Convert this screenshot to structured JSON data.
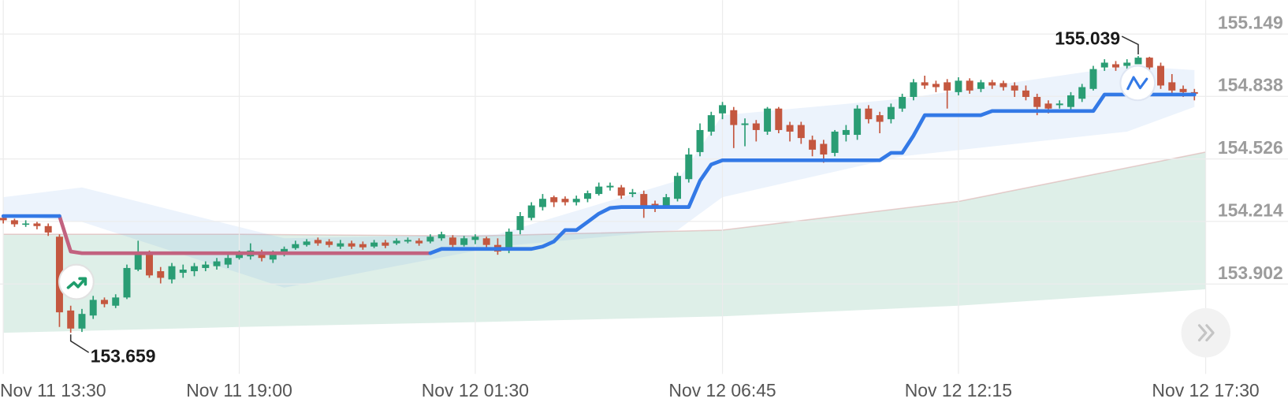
{
  "chart_data": {
    "type": "candlestick",
    "categories": [
      "Nov 11 13:30",
      null,
      null,
      null,
      null,
      null,
      null,
      null,
      null,
      null,
      null,
      null,
      null,
      null,
      null,
      null,
      null,
      null,
      null,
      null,
      null,
      "Nov 11 19:00",
      null,
      null,
      null,
      null,
      null,
      null,
      null,
      null,
      null,
      null,
      null,
      null,
      null,
      null,
      null,
      null,
      null,
      null,
      null,
      null,
      "Nov 12 01:30",
      null,
      null,
      null,
      null,
      null,
      null,
      null,
      null,
      null,
      null,
      null,
      null,
      null,
      null,
      null,
      null,
      null,
      null,
      null,
      null,
      null,
      "Nov 12 06:45",
      null,
      null,
      null,
      null,
      null,
      null,
      null,
      null,
      null,
      null,
      null,
      null,
      null,
      null,
      null,
      null,
      null,
      null,
      null,
      null,
      "Nov 12 12:15",
      null,
      null,
      null,
      null,
      null,
      null,
      null,
      null,
      null,
      null,
      null,
      null,
      null,
      null,
      null,
      null,
      null,
      null,
      null,
      null,
      null,
      "Nov 12 17:30"
    ],
    "open": [
      154.232,
      154.22,
      154.2,
      154.204,
      154.191,
      154.138,
      153.77,
      153.68,
      153.745,
      153.823,
      153.794,
      153.835,
      153.974,
      154.056,
      153.966,
      153.925,
      153.958,
      153.966,
      153.982,
      153.991,
      153.999,
      154.032,
      154.04,
      154.056,
      154.024,
      154.048,
      154.081,
      154.097,
      154.122,
      154.114,
      154.089,
      154.105,
      154.101,
      154.089,
      154.109,
      154.105,
      154.114,
      154.118,
      154.114,
      154.13,
      154.134,
      154.097,
      154.122,
      154.13,
      154.097,
      154.069,
      154.171,
      154.232,
      154.286,
      154.335,
      154.327,
      154.31,
      154.327,
      154.351,
      154.384,
      154.384,
      154.351,
      154.351,
      154.302,
      154.294,
      154.327,
      154.425,
      154.56,
      154.662,
      154.753,
      154.769,
      154.695,
      154.703,
      154.662,
      154.777,
      154.695,
      154.695,
      154.621,
      154.601,
      154.556,
      154.646,
      154.646,
      154.777,
      154.744,
      154.724,
      154.777,
      154.835,
      154.908,
      154.9,
      154.908,
      154.859,
      154.916,
      154.875,
      154.908,
      154.904,
      154.892,
      154.867,
      154.835,
      154.802,
      154.794,
      154.785,
      154.826,
      154.875,
      154.982,
      154.998,
      154.99,
      154.998,
      155.031,
      154.99,
      154.908,
      154.875,
      154.859,
      null
    ],
    "high": [
      154.245,
      154.228,
      154.22,
      154.212,
      154.204,
      154.15,
      153.794,
      153.778,
      153.843,
      153.835,
      153.851,
      153.999,
      154.118,
      154.069,
      153.987,
      154.007,
      153.999,
      154.007,
      154.015,
      154.032,
      154.048,
      154.069,
      154.105,
      154.073,
      154.069,
      154.089,
      154.118,
      154.126,
      154.134,
      154.126,
      154.122,
      154.118,
      154.114,
      154.122,
      154.122,
      154.13,
      154.134,
      154.13,
      154.15,
      154.163,
      154.146,
      154.142,
      154.15,
      154.138,
      154.13,
      154.179,
      154.261,
      154.31,
      154.351,
      154.343,
      154.339,
      154.343,
      154.368,
      154.408,
      154.408,
      154.396,
      154.376,
      154.368,
      154.318,
      154.351,
      154.458,
      154.58,
      154.703,
      154.761,
      154.81,
      154.785,
      154.728,
      154.72,
      154.785,
      154.785,
      154.711,
      154.711,
      154.642,
      154.621,
      154.67,
      154.695,
      154.794,
      154.794,
      154.761,
      154.802,
      154.851,
      154.924,
      154.941,
      154.916,
      154.924,
      154.933,
      154.928,
      154.92,
      154.92,
      154.916,
      154.908,
      154.892,
      154.851,
      154.818,
      154.818,
      154.859,
      154.9,
      154.99,
      155.023,
      155.014,
      155.023,
      155.039,
      155.035,
      155.006,
      154.949,
      154.892,
      154.875,
      null
    ],
    "low": [
      154.204,
      154.187,
      154.187,
      154.175,
      154.142,
      153.688,
      153.659,
      153.663,
      153.728,
      153.786,
      153.782,
      153.827,
      153.966,
      153.933,
      153.905,
      153.905,
      153.933,
      153.941,
      153.966,
      153.974,
      153.982,
      154.024,
      154.024,
      154.015,
      154.007,
      154.04,
      154.073,
      154.089,
      154.093,
      154.085,
      154.077,
      154.077,
      154.073,
      154.081,
      154.081,
      154.097,
      154.105,
      154.093,
      154.105,
      154.118,
      154.081,
      154.089,
      154.101,
      154.077,
      154.048,
      154.056,
      154.15,
      154.22,
      154.269,
      154.286,
      154.294,
      154.294,
      154.31,
      154.343,
      154.368,
      154.327,
      154.335,
      154.232,
      154.261,
      154.286,
      154.314,
      154.408,
      154.539,
      154.642,
      154.724,
      154.58,
      154.589,
      154.613,
      154.646,
      154.654,
      154.613,
      154.601,
      154.539,
      154.507,
      154.539,
      154.613,
      154.621,
      154.703,
      154.654,
      154.703,
      154.761,
      154.818,
      154.875,
      154.859,
      154.777,
      154.843,
      154.851,
      154.859,
      154.875,
      154.867,
      154.835,
      154.818,
      154.744,
      154.753,
      154.777,
      154.769,
      154.81,
      154.867,
      154.965,
      154.965,
      154.974,
      154.998,
      154.957,
      154.875,
      154.851,
      154.835,
      154.818,
      null
    ],
    "close": [
      154.22,
      154.2,
      154.204,
      154.191,
      154.159,
      153.761,
      153.68,
      153.753,
      153.823,
      153.802,
      153.835,
      153.982,
      154.056,
      153.945,
      153.933,
      153.991,
      153.974,
      153.991,
      153.999,
      154.015,
      154.032,
      154.048,
      154.069,
      154.032,
      154.052,
      154.077,
      154.101,
      154.114,
      154.105,
      154.097,
      154.105,
      154.089,
      154.085,
      154.109,
      154.093,
      154.118,
      154.122,
      154.105,
      154.138,
      154.15,
      154.097,
      154.13,
      154.138,
      154.097,
      154.064,
      154.163,
      154.241,
      154.294,
      154.327,
      154.31,
      154.31,
      154.327,
      154.355,
      154.388,
      154.392,
      154.343,
      154.359,
      154.286,
      154.277,
      154.335,
      154.441,
      154.548,
      154.67,
      154.744,
      154.794,
      154.695,
      154.703,
      154.67,
      154.777,
      154.67,
      154.662,
      154.63,
      154.572,
      154.548,
      154.662,
      154.67,
      154.777,
      154.724,
      154.711,
      154.785,
      154.835,
      154.908,
      154.892,
      154.884,
      154.867,
      154.916,
      154.867,
      154.908,
      154.892,
      154.884,
      154.867,
      154.835,
      154.785,
      154.777,
      154.802,
      154.843,
      154.884,
      154.974,
      155.006,
      154.982,
      155.006,
      155.031,
      154.982,
      154.892,
      154.867,
      154.859,
      154.851,
      null
    ],
    "up_color": "#2a9d74",
    "down_color": "#c4573f",
    "ylim": [
      153.454,
      155.318
    ],
    "yticks": [
      155.149,
      154.838,
      154.526,
      154.214,
      153.902
    ],
    "grid": true,
    "lines": [
      {
        "color": "#c2627f",
        "values": [
          null,
          null,
          null,
          null,
          null,
          154.241,
          154.064,
          154.056,
          154.056,
          154.056,
          154.056,
          154.056,
          154.056,
          154.056,
          154.056,
          154.056,
          154.056,
          154.056,
          154.056,
          154.056,
          154.056,
          154.056,
          154.056,
          154.056,
          154.056,
          154.056,
          154.056,
          154.056,
          154.056,
          154.056,
          154.056,
          154.056,
          154.056,
          154.056,
          154.056,
          154.056,
          154.056,
          154.056,
          154.056,
          null,
          null,
          null,
          null,
          null,
          null,
          null,
          null,
          null,
          null,
          null,
          null,
          null,
          null,
          null,
          null,
          null,
          null,
          null,
          null,
          null,
          null,
          null,
          null,
          null,
          null,
          null,
          null,
          null,
          null,
          null,
          null,
          null,
          null,
          null,
          null,
          null,
          null,
          null,
          null,
          null,
          null,
          null,
          null,
          null,
          null,
          null,
          null,
          null,
          null,
          null,
          null,
          null,
          null,
          null,
          null,
          null,
          null,
          null,
          null,
          null,
          null,
          null,
          null,
          null,
          null,
          null,
          null,
          null
        ]
      },
      {
        "color": "#3379e6",
        "values": [
          154.241,
          154.241,
          154.241,
          154.241,
          154.241,
          154.241,
          null,
          null,
          null,
          null,
          null,
          null,
          null,
          null,
          null,
          null,
          null,
          null,
          null,
          null,
          null,
          null,
          null,
          null,
          null,
          null,
          null,
          null,
          null,
          null,
          null,
          null,
          null,
          null,
          null,
          null,
          null,
          null,
          154.056,
          154.077,
          154.077,
          154.077,
          154.077,
          154.077,
          154.077,
          154.077,
          154.077,
          154.077,
          154.089,
          154.114,
          154.171,
          154.171,
          154.212,
          154.253,
          154.281,
          154.286,
          154.286,
          154.286,
          154.286,
          154.286,
          154.286,
          154.286,
          154.417,
          154.498,
          154.519,
          154.519,
          154.519,
          154.519,
          154.519,
          154.519,
          154.519,
          154.519,
          154.519,
          154.519,
          154.519,
          154.519,
          154.519,
          154.519,
          154.519,
          154.556,
          154.556,
          154.642,
          154.744,
          154.744,
          154.744,
          154.744,
          154.744,
          154.744,
          154.765,
          154.765,
          154.765,
          154.765,
          154.765,
          154.765,
          154.765,
          154.765,
          154.765,
          154.765,
          154.847,
          154.847,
          154.847,
          154.847,
          154.847,
          154.847,
          154.847,
          154.847,
          154.847,
          null
        ]
      }
    ],
    "bands": [
      {
        "color": "#2f9e6e",
        "x": [
          0,
          21,
          42,
          64,
          85,
          107
        ],
        "upper": [
          154.15,
          154.15,
          154.142,
          154.171,
          154.314,
          154.56
        ],
        "lower": [
          153.659,
          153.688,
          153.712,
          153.741,
          153.794,
          153.876
        ]
      },
      {
        "color": "#6f9fe6",
        "x": [
          0,
          7,
          25,
          44,
          60,
          64,
          80,
          100,
          106
        ],
        "upper": [
          154.335,
          154.384,
          154.13,
          154.15,
          154.417,
          154.744,
          154.826,
          154.99,
          154.969
        ],
        "lower": [
          154.245,
          154.212,
          153.884,
          154.089,
          154.171,
          154.335,
          154.539,
          154.662,
          154.785
        ]
      }
    ]
  }
}
